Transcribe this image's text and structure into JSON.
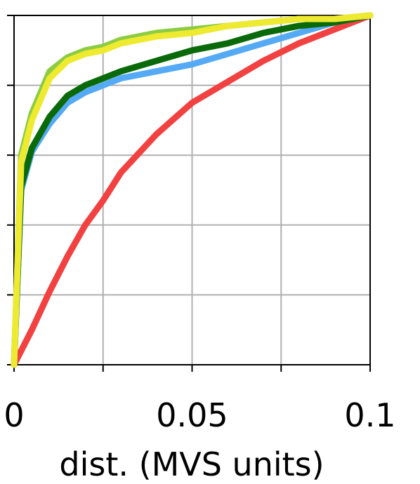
{
  "chart_data": {
    "type": "line",
    "xlabel": "dist. (MVS units)",
    "xlim": [
      0,
      0.1
    ],
    "ylim": [
      0,
      1
    ],
    "xticks": [
      0,
      0.05,
      0.1
    ],
    "x_unlabeled_ticks": [
      0.025,
      0.075
    ],
    "y_unlabeled_ticks": [
      0,
      0.2,
      0.4,
      0.6,
      0.8,
      1
    ],
    "grid": true,
    "x": [
      0,
      0.002,
      0.005,
      0.01,
      0.015,
      0.02,
      0.025,
      0.03,
      0.04,
      0.05,
      0.06,
      0.07,
      0.08,
      0.09,
      0.1
    ],
    "series": [
      {
        "color": "#f24141",
        "values": [
          0,
          0.04,
          0.1,
          0.21,
          0.31,
          0.4,
          0.47,
          0.55,
          0.66,
          0.75,
          0.81,
          0.87,
          0.92,
          0.96,
          1
        ]
      },
      {
        "color": "#55aaf5",
        "values": [
          0,
          0.5,
          0.61,
          0.69,
          0.75,
          0.78,
          0.8,
          0.82,
          0.84,
          0.86,
          0.89,
          0.92,
          0.95,
          0.98,
          1
        ]
      },
      {
        "color": "#0a6a0a",
        "values": [
          0,
          0.51,
          0.62,
          0.71,
          0.77,
          0.8,
          0.82,
          0.84,
          0.87,
          0.9,
          0.92,
          0.95,
          0.97,
          0.98,
          1
        ]
      },
      {
        "color": "#8ccc44",
        "values": [
          0,
          0.6,
          0.72,
          0.84,
          0.88,
          0.9,
          0.91,
          0.93,
          0.95,
          0.96,
          0.97,
          0.98,
          0.99,
          0.99,
          1
        ]
      },
      {
        "color": "#eeea30",
        "values": [
          0,
          0.58,
          0.7,
          0.82,
          0.87,
          0.89,
          0.9,
          0.92,
          0.94,
          0.95,
          0.97,
          0.98,
          0.99,
          0.99,
          1
        ]
      }
    ]
  }
}
